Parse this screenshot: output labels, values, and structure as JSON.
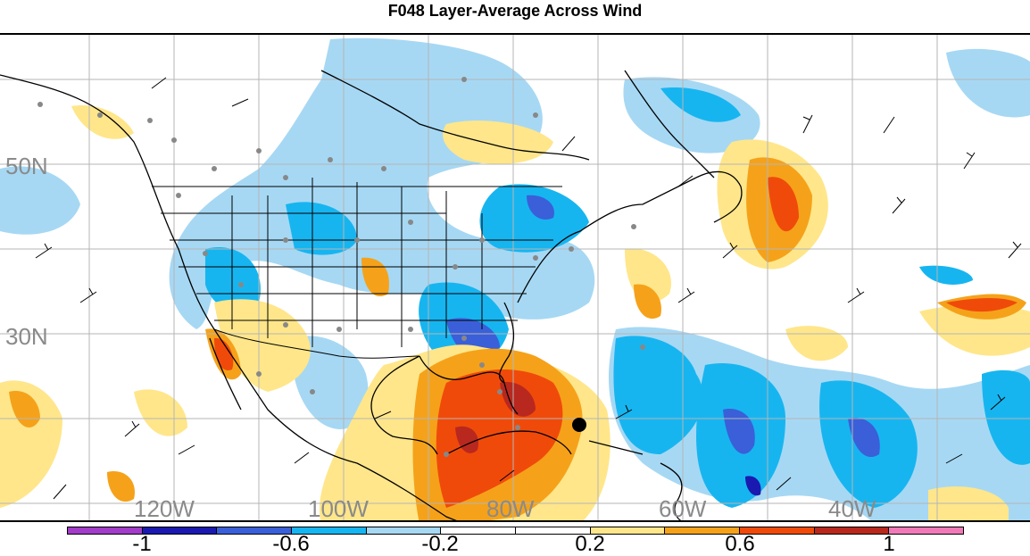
{
  "title": "F048 Layer-Average Across Wind",
  "map": {
    "lat_labels": [
      "50N",
      "30N"
    ],
    "lon_labels": [
      "120W",
      "100W",
      "80W",
      "60W",
      "40W"
    ]
  },
  "colorbar": {
    "colors": [
      "#a23cc9",
      "#1a1ab0",
      "#3a5fd9",
      "#17b5f0",
      "#a6d8f4",
      "#ffffff",
      "#ffffff",
      "#ffe68a",
      "#f5a21a",
      "#f04a0a",
      "#b8281e",
      "#f07ab8"
    ],
    "labels": [
      "-1",
      "-0.6",
      "-0.2",
      "0.2",
      "0.6",
      "1"
    ]
  }
}
